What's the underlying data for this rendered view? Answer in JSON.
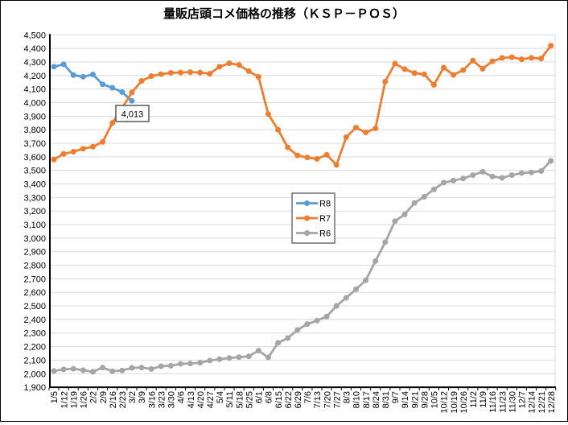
{
  "chart_data": {
    "type": "line",
    "title": "量販店頭コメ価格の推移（ＫＳＰ－ＰＯＳ）",
    "categories": [
      "1/5",
      "1/12",
      "1/19",
      "1/26",
      "2/2",
      "2/9",
      "2/16",
      "2/23",
      "3/2",
      "3/9",
      "3/16",
      "3/23",
      "3/30",
      "4/6",
      "4/13",
      "4/20",
      "4/27",
      "5/4",
      "5/11",
      "5/18",
      "5/25",
      "6/1",
      "6/8",
      "6/15",
      "6/22",
      "6/29",
      "7/6",
      "7/13",
      "7/20",
      "7/27",
      "8/3",
      "8/10",
      "8/17",
      "8/24",
      "8/31",
      "9/7",
      "9/14",
      "9/21",
      "9/28",
      "10/5",
      "10/12",
      "10/19",
      "10/26",
      "11/2",
      "11/9",
      "11/16",
      "11/23",
      "11/30",
      "12/7",
      "12/14",
      "12/21",
      "12/28"
    ],
    "series": [
      {
        "name": "R8",
        "color": "#5B9BD5",
        "values": [
          4265,
          4283,
          4203,
          4191,
          4208,
          4135,
          4110,
          4078,
          4013,
          null,
          null,
          null,
          null,
          null,
          null,
          null,
          null,
          null,
          null,
          null,
          null,
          null,
          null,
          null,
          null,
          null,
          null,
          null,
          null,
          null,
          null,
          null,
          null,
          null,
          null,
          null,
          null,
          null,
          null,
          null,
          null,
          null,
          null,
          null,
          null,
          null,
          null,
          null,
          null,
          null,
          null,
          null
        ]
      },
      {
        "name": "R7",
        "color": "#ED7D31",
        "values": [
          3580,
          3622,
          3638,
          3660,
          3675,
          3710,
          3850,
          3960,
          4075,
          4160,
          4195,
          4210,
          4220,
          4222,
          4225,
          4222,
          4213,
          4265,
          4290,
          4278,
          4232,
          4190,
          3915,
          3800,
          3670,
          3610,
          3595,
          3585,
          3615,
          3540,
          3745,
          3815,
          3780,
          3810,
          4155,
          4288,
          4247,
          4218,
          4209,
          4131,
          4258,
          4205,
          4240,
          4310,
          4250,
          4305,
          4330,
          4335,
          4320,
          4330,
          4325,
          4420
        ]
      },
      {
        "name": "R6",
        "color": "#A5A5A5",
        "values": [
          2020,
          2032,
          2036,
          2026,
          2014,
          2045,
          2018,
          2024,
          2043,
          2045,
          2035,
          2055,
          2059,
          2073,
          2075,
          2081,
          2097,
          2107,
          2116,
          2122,
          2128,
          2170,
          2120,
          2227,
          2263,
          2323,
          2366,
          2392,
          2422,
          2500,
          2560,
          2623,
          2689,
          2831,
          2970,
          3125,
          3175,
          3260,
          3305,
          3360,
          3410,
          3425,
          3440,
          3465,
          3490,
          3455,
          3445,
          3465,
          3480,
          3485,
          3495,
          3570
        ]
      }
    ],
    "ylim": [
      1900,
      4500
    ],
    "ytick_step": 100,
    "grid": true,
    "legend_position": "middle-center",
    "annotation": {
      "text": "4,013",
      "series": "R8",
      "index": 8
    }
  },
  "legend": {
    "items": [
      "R8",
      "R7",
      "R6"
    ]
  },
  "colors": {
    "grid": "#D9D9D9",
    "axis": "#000000",
    "annotation_border": "#595959",
    "legend_border": "#595959"
  }
}
